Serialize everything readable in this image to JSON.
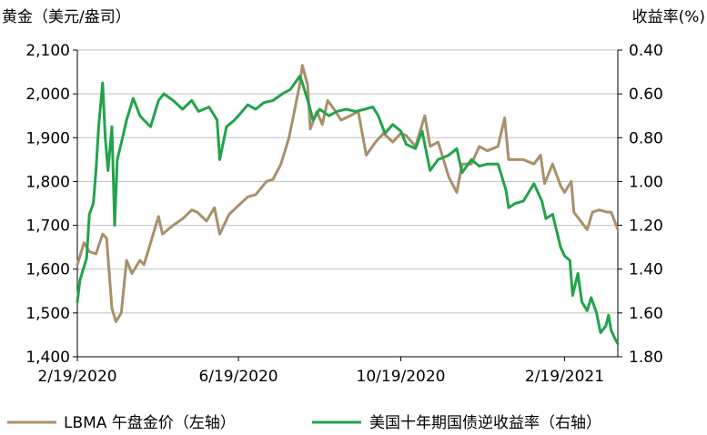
{
  "chart_data": {
    "type": "line",
    "title": "",
    "y_left_label": "黄金（美元/盎司）",
    "y_right_label": "收益率(%)",
    "y_left_range": [
      1400,
      2100
    ],
    "y_right_range": [
      0.4,
      1.8
    ],
    "y_right_inverted": true,
    "y_left_ticks": [
      "2,100",
      "2,000",
      "1,900",
      "1,800",
      "1,700",
      "1,600",
      "1,500",
      "1,400"
    ],
    "y_right_ticks": [
      "0.40",
      "0.60",
      "0.80",
      "1.00",
      "1.20",
      "1.40",
      "1.60",
      "1.80"
    ],
    "x_ticks": [
      "2/19/2020",
      "6/19/2020",
      "10/19/2020",
      "2/19/2021"
    ],
    "x_tick_dates": [
      "2020-02-19",
      "2020-06-19",
      "2020-10-19",
      "2021-02-19"
    ],
    "x_range": [
      "2020-02-19",
      "2021-03-31"
    ],
    "grid": "horizontal",
    "legend_position": "bottom",
    "series": [
      {
        "name": "LBMA 午盘金价（左轴）",
        "axis": "left",
        "color": "#A8906A",
        "points": [
          [
            "2020-02-19",
            1610
          ],
          [
            "2020-02-24",
            1660
          ],
          [
            "2020-02-28",
            1640
          ],
          [
            "2020-03-04",
            1635
          ],
          [
            "2020-03-09",
            1680
          ],
          [
            "2020-03-12",
            1670
          ],
          [
            "2020-03-16",
            1510
          ],
          [
            "2020-03-19",
            1480
          ],
          [
            "2020-03-23",
            1500
          ],
          [
            "2020-03-27",
            1620
          ],
          [
            "2020-03-31",
            1590
          ],
          [
            "2020-04-06",
            1620
          ],
          [
            "2020-04-09",
            1610
          ],
          [
            "2020-04-14",
            1660
          ],
          [
            "2020-04-20",
            1720
          ],
          [
            "2020-04-23",
            1680
          ],
          [
            "2020-04-27",
            1690
          ],
          [
            "2020-05-01",
            1700
          ],
          [
            "2020-05-08",
            1715
          ],
          [
            "2020-05-15",
            1735
          ],
          [
            "2020-05-19",
            1730
          ],
          [
            "2020-05-26",
            1710
          ],
          [
            "2020-06-01",
            1740
          ],
          [
            "2020-06-05",
            1680
          ],
          [
            "2020-06-12",
            1725
          ],
          [
            "2020-06-19",
            1745
          ],
          [
            "2020-06-26",
            1765
          ],
          [
            "2020-07-02",
            1770
          ],
          [
            "2020-07-10",
            1800
          ],
          [
            "2020-07-15",
            1805
          ],
          [
            "2020-07-21",
            1840
          ],
          [
            "2020-07-27",
            1900
          ],
          [
            "2020-07-31",
            1960
          ],
          [
            "2020-08-04",
            2020
          ],
          [
            "2020-08-06",
            2065
          ],
          [
            "2020-08-10",
            2020
          ],
          [
            "2020-08-12",
            1920
          ],
          [
            "2020-08-17",
            1960
          ],
          [
            "2020-08-21",
            1930
          ],
          [
            "2020-08-25",
            1985
          ],
          [
            "2020-08-31",
            1960
          ],
          [
            "2020-09-04",
            1940
          ],
          [
            "2020-09-11",
            1950
          ],
          [
            "2020-09-17",
            1960
          ],
          [
            "2020-09-23",
            1860
          ],
          [
            "2020-09-30",
            1890
          ],
          [
            "2020-10-06",
            1910
          ],
          [
            "2020-10-13",
            1890
          ],
          [
            "2020-10-19",
            1910
          ],
          [
            "2020-10-23",
            1905
          ],
          [
            "2020-10-30",
            1880
          ],
          [
            "2020-11-06",
            1950
          ],
          [
            "2020-11-10",
            1880
          ],
          [
            "2020-11-16",
            1890
          ],
          [
            "2020-11-24",
            1810
          ],
          [
            "2020-11-30",
            1775
          ],
          [
            "2020-12-04",
            1840
          ],
          [
            "2020-12-11",
            1840
          ],
          [
            "2020-12-17",
            1880
          ],
          [
            "2020-12-23",
            1870
          ],
          [
            "2020-12-31",
            1880
          ],
          [
            "2021-01-05",
            1945
          ],
          [
            "2021-01-08",
            1850
          ],
          [
            "2021-01-13",
            1850
          ],
          [
            "2021-01-19",
            1850
          ],
          [
            "2021-01-27",
            1840
          ],
          [
            "2021-02-01",
            1860
          ],
          [
            "2021-02-04",
            1795
          ],
          [
            "2021-02-10",
            1840
          ],
          [
            "2021-02-16",
            1790
          ],
          [
            "2021-02-19",
            1775
          ],
          [
            "2021-02-24",
            1800
          ],
          [
            "2021-02-26",
            1730
          ],
          [
            "2021-03-03",
            1710
          ],
          [
            "2021-03-08",
            1690
          ],
          [
            "2021-03-12",
            1730
          ],
          [
            "2021-03-17",
            1735
          ],
          [
            "2021-03-23",
            1730
          ],
          [
            "2021-03-26",
            1730
          ],
          [
            "2021-03-31",
            1690
          ]
        ]
      },
      {
        "name": "美国十年期国债逆收益率（右轴）",
        "axis": "right",
        "color": "#22A34A",
        "points": [
          [
            "2020-02-19",
            1.55
          ],
          [
            "2020-02-21",
            1.45
          ],
          [
            "2020-02-26",
            1.35
          ],
          [
            "2020-02-28",
            1.15
          ],
          [
            "2020-03-02",
            1.1
          ],
          [
            "2020-03-04",
            0.95
          ],
          [
            "2020-03-06",
            0.75
          ],
          [
            "2020-03-09",
            0.55
          ],
          [
            "2020-03-11",
            0.8
          ],
          [
            "2020-03-13",
            0.95
          ],
          [
            "2020-03-16",
            0.75
          ],
          [
            "2020-03-18",
            1.2
          ],
          [
            "2020-03-20",
            0.9
          ],
          [
            "2020-03-24",
            0.8
          ],
          [
            "2020-03-27",
            0.72
          ],
          [
            "2020-04-01",
            0.62
          ],
          [
            "2020-04-06",
            0.7
          ],
          [
            "2020-04-09",
            0.72
          ],
          [
            "2020-04-14",
            0.75
          ],
          [
            "2020-04-20",
            0.63
          ],
          [
            "2020-04-24",
            0.6
          ],
          [
            "2020-05-01",
            0.63
          ],
          [
            "2020-05-08",
            0.67
          ],
          [
            "2020-05-15",
            0.63
          ],
          [
            "2020-05-20",
            0.68
          ],
          [
            "2020-05-28",
            0.66
          ],
          [
            "2020-06-03",
            0.72
          ],
          [
            "2020-06-05",
            0.9
          ],
          [
            "2020-06-10",
            0.75
          ],
          [
            "2020-06-16",
            0.72
          ],
          [
            "2020-06-19",
            0.7
          ],
          [
            "2020-06-26",
            0.65
          ],
          [
            "2020-07-02",
            0.67
          ],
          [
            "2020-07-08",
            0.64
          ],
          [
            "2020-07-15",
            0.63
          ],
          [
            "2020-07-22",
            0.6
          ],
          [
            "2020-07-28",
            0.58
          ],
          [
            "2020-08-04",
            0.52
          ],
          [
            "2020-08-06",
            0.55
          ],
          [
            "2020-08-11",
            0.65
          ],
          [
            "2020-08-14",
            0.72
          ],
          [
            "2020-08-19",
            0.67
          ],
          [
            "2020-08-26",
            0.7
          ],
          [
            "2020-09-01",
            0.68
          ],
          [
            "2020-09-08",
            0.67
          ],
          [
            "2020-09-15",
            0.68
          ],
          [
            "2020-09-22",
            0.67
          ],
          [
            "2020-09-28",
            0.66
          ],
          [
            "2020-10-02",
            0.7
          ],
          [
            "2020-10-07",
            0.78
          ],
          [
            "2020-10-13",
            0.74
          ],
          [
            "2020-10-19",
            0.77
          ],
          [
            "2020-10-23",
            0.83
          ],
          [
            "2020-10-30",
            0.85
          ],
          [
            "2020-11-04",
            0.77
          ],
          [
            "2020-11-10",
            0.95
          ],
          [
            "2020-11-16",
            0.9
          ],
          [
            "2020-11-24",
            0.88
          ],
          [
            "2020-11-30",
            0.85
          ],
          [
            "2020-12-04",
            0.96
          ],
          [
            "2020-12-11",
            0.9
          ],
          [
            "2020-12-17",
            0.93
          ],
          [
            "2020-12-23",
            0.92
          ],
          [
            "2020-12-31",
            0.92
          ],
          [
            "2021-01-06",
            1.04
          ],
          [
            "2021-01-08",
            1.12
          ],
          [
            "2021-01-13",
            1.1
          ],
          [
            "2021-01-19",
            1.09
          ],
          [
            "2021-01-27",
            1.01
          ],
          [
            "2021-02-02",
            1.09
          ],
          [
            "2021-02-05",
            1.17
          ],
          [
            "2021-02-10",
            1.15
          ],
          [
            "2021-02-16",
            1.3
          ],
          [
            "2021-02-19",
            1.34
          ],
          [
            "2021-02-23",
            1.36
          ],
          [
            "2021-02-25",
            1.52
          ],
          [
            "2021-03-01",
            1.42
          ],
          [
            "2021-03-04",
            1.55
          ],
          [
            "2021-03-08",
            1.59
          ],
          [
            "2021-03-11",
            1.53
          ],
          [
            "2021-03-15",
            1.6
          ],
          [
            "2021-03-18",
            1.69
          ],
          [
            "2021-03-22",
            1.66
          ],
          [
            "2021-03-24",
            1.61
          ],
          [
            "2021-03-26",
            1.68
          ],
          [
            "2021-03-29",
            1.72
          ],
          [
            "2021-03-31",
            1.74
          ]
        ]
      }
    ]
  }
}
